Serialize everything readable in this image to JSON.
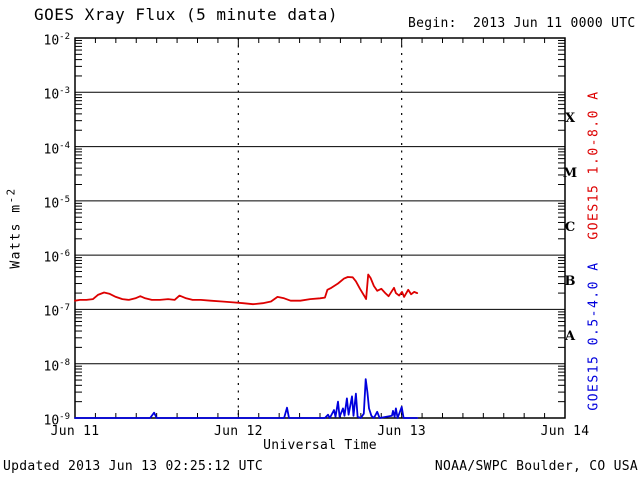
{
  "header": {
    "title": "GOES Xray Flux (5 minute data)",
    "begin_label": "Begin:  2013 Jun 11 0000 UTC"
  },
  "footer": {
    "updated": "Updated 2013 Jun 13 02:25:12 UTC",
    "source": "NOAA/SWPC Boulder, CO USA"
  },
  "axes": {
    "xlabel": "Universal Time",
    "ylabel_base": "Watts m",
    "ylabel_exp": "-2"
  },
  "colors": {
    "long_band": "#dd0000",
    "short_band": "#0000dd",
    "axis": "#000000",
    "background": "#ffffff"
  },
  "chart_data": {
    "type": "line",
    "title": "GOES Xray Flux (5 minute data)",
    "subtitle": "Begin:  2013 Jun 11 0000 UTC",
    "updated": "2013 Jun 13 02:25:12 UTC",
    "xlabel": "Universal Time",
    "ylabel": "Watts m^-2",
    "x_axis": {
      "units": "days since 2013 Jun 11 0000 UTC",
      "range_days": [
        0,
        3
      ],
      "tick_labels": [
        "Jun 11",
        "Jun 12",
        "Jun 13",
        "Jun 14"
      ],
      "minor_tick_hours": 3
    },
    "y_axis": {
      "scale": "log",
      "range": [
        1e-09,
        0.01
      ],
      "tick_exponents": [
        -2,
        -3,
        -4,
        -5,
        -6,
        -7,
        -8,
        -9
      ]
    },
    "grid": {
      "horizontal_decades": [
        -3,
        -4,
        -5,
        -6,
        -7,
        -8
      ],
      "vertical_dotted_days": [
        1,
        2
      ]
    },
    "flare_classes": [
      {
        "letter": "X",
        "center_exponent": -3.5
      },
      {
        "letter": "M",
        "center_exponent": -4.5
      },
      {
        "letter": "C",
        "center_exponent": -5.5
      },
      {
        "letter": "B",
        "center_exponent": -6.5
      },
      {
        "letter": "A",
        "center_exponent": -7.5
      }
    ],
    "series": [
      {
        "name": "GOES15 1.0-8.0 A",
        "color": "#dd0000",
        "points": [
          [
            0.0,
            1.45e-07
          ],
          [
            0.03,
            1.5e-07
          ],
          [
            0.07,
            1.5e-07
          ],
          [
            0.11,
            1.55e-07
          ],
          [
            0.14,
            1.85e-07
          ],
          [
            0.178,
            2.05e-07
          ],
          [
            0.21,
            1.95e-07
          ],
          [
            0.25,
            1.7e-07
          ],
          [
            0.29,
            1.55e-07
          ],
          [
            0.33,
            1.5e-07
          ],
          [
            0.37,
            1.6e-07
          ],
          [
            0.4,
            1.75e-07
          ],
          [
            0.43,
            1.6e-07
          ],
          [
            0.47,
            1.5e-07
          ],
          [
            0.52,
            1.5e-07
          ],
          [
            0.57,
            1.55e-07
          ],
          [
            0.61,
            1.5e-07
          ],
          [
            0.64,
            1.8e-07
          ],
          [
            0.68,
            1.6e-07
          ],
          [
            0.72,
            1.5e-07
          ],
          [
            0.77,
            1.5e-07
          ],
          [
            0.83,
            1.45e-07
          ],
          [
            0.9,
            1.4e-07
          ],
          [
            0.97,
            1.35e-07
          ],
          [
            1.03,
            1.3e-07
          ],
          [
            1.09,
            1.25e-07
          ],
          [
            1.15,
            1.3e-07
          ],
          [
            1.2,
            1.4e-07
          ],
          [
            1.24,
            1.7e-07
          ],
          [
            1.28,
            1.6e-07
          ],
          [
            1.32,
            1.45e-07
          ],
          [
            1.38,
            1.45e-07
          ],
          [
            1.44,
            1.55e-07
          ],
          [
            1.5,
            1.6e-07
          ],
          [
            1.53,
            1.65e-07
          ],
          [
            1.545,
            2.3e-07
          ],
          [
            1.57,
            2.5e-07
          ],
          [
            1.61,
            3e-07
          ],
          [
            1.647,
            3.7e-07
          ],
          [
            1.67,
            3.95e-07
          ],
          [
            1.7,
            3.9e-07
          ],
          [
            1.72,
            3.3e-07
          ],
          [
            1.745,
            2.4e-07
          ],
          [
            1.77,
            1.8e-07
          ],
          [
            1.782,
            1.55e-07
          ],
          [
            1.795,
            4.4e-07
          ],
          [
            1.81,
            3.8e-07
          ],
          [
            1.83,
            2.7e-07
          ],
          [
            1.85,
            2.2e-07
          ],
          [
            1.875,
            2.4e-07
          ],
          [
            1.9,
            2e-07
          ],
          [
            1.92,
            1.75e-07
          ],
          [
            1.953,
            2.5e-07
          ],
          [
            1.965,
            2e-07
          ],
          [
            1.984,
            1.8e-07
          ],
          [
            2.002,
            2.1e-07
          ],
          [
            2.015,
            1.7e-07
          ],
          [
            2.04,
            2.3e-07
          ],
          [
            2.058,
            1.9e-07
          ],
          [
            2.076,
            2.1e-07
          ],
          [
            2.095,
            2e-07
          ]
        ]
      },
      {
        "name": "GOES15 0.5-4.0 A",
        "color": "#0000dd",
        "points": [
          [
            0.0,
            1e-09
          ],
          [
            0.46,
            1e-09
          ],
          [
            0.484,
            1.25e-09
          ],
          [
            0.5,
            1e-09
          ],
          [
            1.28,
            1e-09
          ],
          [
            1.298,
            1.55e-09
          ],
          [
            1.31,
            1e-09
          ],
          [
            1.53,
            1e-09
          ],
          [
            1.549,
            1.15e-09
          ],
          [
            1.56,
            1e-09
          ],
          [
            1.586,
            1.4e-09
          ],
          [
            1.595,
            1.05e-09
          ],
          [
            1.61,
            2e-09
          ],
          [
            1.62,
            1.05e-09
          ],
          [
            1.641,
            1.5e-09
          ],
          [
            1.65,
            1.1e-09
          ],
          [
            1.665,
            2.3e-09
          ],
          [
            1.675,
            1.15e-09
          ],
          [
            1.696,
            2.5e-09
          ],
          [
            1.705,
            1.1e-09
          ],
          [
            1.72,
            2.8e-09
          ],
          [
            1.73,
            1.05e-09
          ],
          [
            1.75,
            1e-09
          ],
          [
            1.768,
            1.2e-09
          ],
          [
            1.78,
            5.2e-09
          ],
          [
            1.79,
            3e-09
          ],
          [
            1.8,
            1.5e-09
          ],
          [
            1.815,
            1.1e-09
          ],
          [
            1.83,
            1e-09
          ],
          [
            1.85,
            1.3e-09
          ],
          [
            1.865,
            1e-09
          ],
          [
            1.94,
            1.1e-09
          ],
          [
            1.947,
            1.35e-09
          ],
          [
            1.957,
            1.05e-09
          ],
          [
            1.965,
            1.5e-09
          ],
          [
            1.975,
            1e-09
          ],
          [
            2.0,
            1.6e-09
          ],
          [
            2.012,
            1e-09
          ],
          [
            2.095,
            1e-09
          ]
        ]
      }
    ]
  }
}
